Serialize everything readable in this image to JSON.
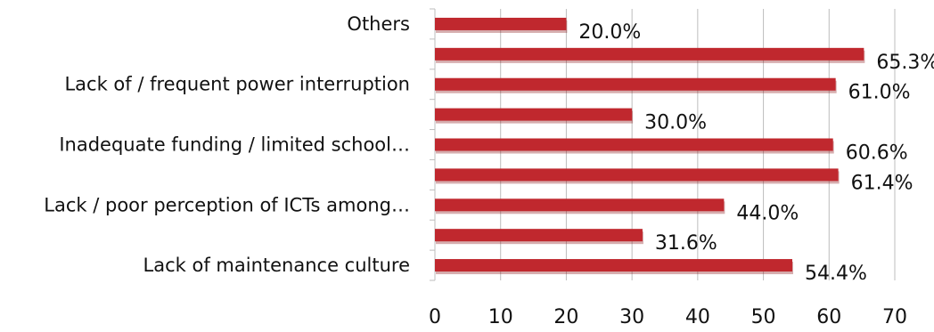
{
  "chart_data": {
    "type": "bar",
    "orientation": "horizontal",
    "categories": [
      "Lack of maintenance culture",
      "",
      "Lack / poor perception of ICTs among…",
      "",
      "Inadequate funding / limited school…",
      "",
      "Lack of / frequent power interruption",
      "",
      "Others"
    ],
    "values": [
      54.4,
      31.6,
      44.0,
      61.4,
      60.6,
      30.0,
      61.0,
      65.3,
      20.0
    ],
    "value_labels": [
      "54.4%",
      "31.6%",
      "44.0%",
      "61.4%",
      "60.6%",
      "30.0%",
      "61.0%",
      "65.3%",
      "20.0%"
    ],
    "x_ticks": [
      "0",
      "10",
      "20",
      "30",
      "40",
      "50",
      "60",
      "70"
    ],
    "xlim": [
      0,
      70
    ],
    "grid": "vertical",
    "legend": "none",
    "colors": {
      "bar": "#c0282e",
      "bar_shadow": "#8a1518",
      "grid": "#bdbdbd",
      "text": "#111111"
    }
  }
}
